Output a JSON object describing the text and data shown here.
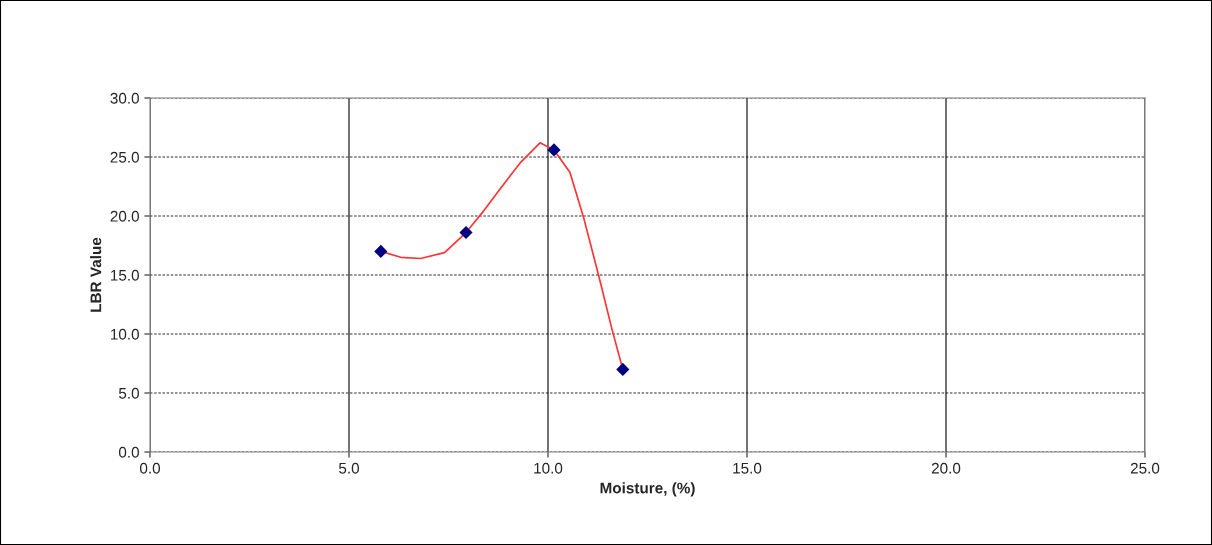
{
  "chart_data": {
    "type": "scatter",
    "xlabel": "Moisture, (%)",
    "ylabel": "LBR Value",
    "xlim": [
      0,
      25
    ],
    "ylim": [
      0,
      30
    ],
    "xticks": [
      {
        "value": 0,
        "label": "0.0"
      },
      {
        "value": 5,
        "label": "5.0"
      },
      {
        "value": 10,
        "label": "10.0"
      },
      {
        "value": 15,
        "label": "15.0"
      },
      {
        "value": 20,
        "label": "20.0"
      },
      {
        "value": 25,
        "label": "25.0"
      }
    ],
    "yticks": [
      {
        "value": 0,
        "label": "0.0"
      },
      {
        "value": 5,
        "label": "5.0"
      },
      {
        "value": 10,
        "label": "10.0"
      },
      {
        "value": 15,
        "label": "15.0"
      },
      {
        "value": 20,
        "label": "20.0"
      },
      {
        "value": 25,
        "label": "25.0"
      },
      {
        "value": 30,
        "label": "30.0"
      }
    ],
    "grid": true,
    "legend": false,
    "series": [
      {
        "type": "line",
        "color": "#ff3333",
        "line_style": "solid",
        "marker": "none",
        "x": [
          5.8,
          6.3,
          6.8,
          7.4,
          7.94,
          8.4,
          8.8,
          9.3,
          9.8,
          10.15,
          10.55,
          10.9,
          11.3,
          11.6,
          11.88
        ],
        "values": [
          17.0,
          16.5,
          16.4,
          16.9,
          18.6,
          20.5,
          22.3,
          24.5,
          26.2,
          25.6,
          23.7,
          19.8,
          14.6,
          10.5,
          7.0
        ]
      },
      {
        "color": "#000080",
        "marker": "diamond",
        "x": [
          5.8,
          7.94,
          10.15,
          11.88
        ],
        "values": [
          17.0,
          18.6,
          25.6,
          7.0
        ]
      }
    ]
  }
}
